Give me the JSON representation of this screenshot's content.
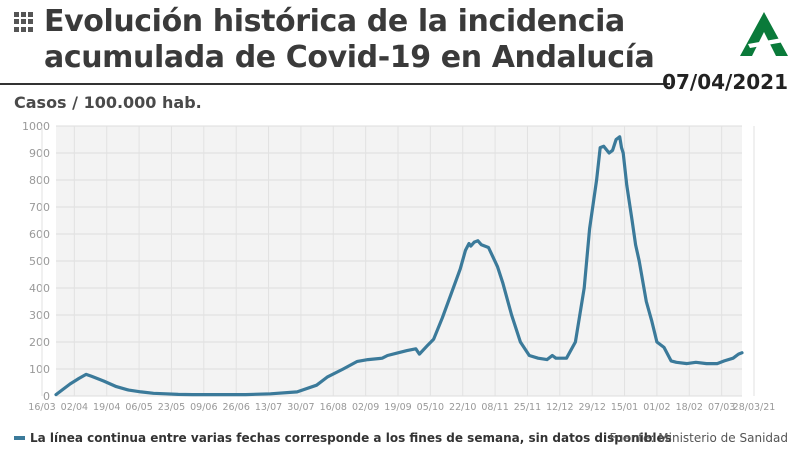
{
  "header": {
    "title_line1": "Evolución histórica de la incidencia",
    "title_line2": "acumulada de Covid-19 en Andalucía",
    "date": "07/04/2021"
  },
  "footer": {
    "note": "La línea continua entre varias fechas corresponde a los fines de semana, sin datos disponibles",
    "source": "Fuente: Ministerio de Sanidad"
  },
  "colors": {
    "line": "#3b7a9a",
    "logo": "#0a7a3a"
  },
  "chart_data": {
    "type": "line",
    "ylabel": "Casos / 100.000 hab.",
    "ylim": [
      0,
      1000
    ],
    "yticks": [
      0,
      100,
      200,
      300,
      400,
      500,
      600,
      700,
      800,
      900,
      1000
    ],
    "xlim": [
      "2020-03-16",
      "2021-04-07"
    ],
    "xticks": [
      "16/03",
      "02/04",
      "19/04",
      "06/05",
      "23/05",
      "09/06",
      "26/06",
      "13/07",
      "30/07",
      "16/08",
      "02/09",
      "19/09",
      "05/10",
      "22/10",
      "08/11",
      "25/11",
      "12/12",
      "29/12",
      "15/01",
      "01/02",
      "18/02",
      "07/03",
      "28/03/21"
    ],
    "grid": true,
    "x": [
      "2020-03-16",
      "2020-03-24",
      "2020-03-29",
      "2020-04-02",
      "2020-04-05",
      "2020-04-12",
      "2020-04-19",
      "2020-04-26",
      "2020-05-03",
      "2020-05-10",
      "2020-05-17",
      "2020-05-24",
      "2020-06-01",
      "2020-06-15",
      "2020-07-01",
      "2020-07-15",
      "2020-07-30",
      "2020-08-10",
      "2020-08-16",
      "2020-08-25",
      "2020-09-02",
      "2020-09-08",
      "2020-09-16",
      "2020-09-19",
      "2020-09-25",
      "2020-09-30",
      "2020-10-05",
      "2020-10-07",
      "2020-10-12",
      "2020-10-15",
      "2020-10-20",
      "2020-10-25",
      "2020-10-30",
      "2020-11-02",
      "2020-11-04",
      "2020-11-05",
      "2020-11-07",
      "2020-11-09",
      "2020-11-11",
      "2020-11-15",
      "2020-11-20",
      "2020-11-23",
      "2020-11-28",
      "2020-12-03",
      "2020-12-08",
      "2020-12-13",
      "2020-12-18",
      "2020-12-21",
      "2020-12-23",
      "2020-12-29",
      "2021-01-03",
      "2021-01-08",
      "2021-01-11",
      "2021-01-15",
      "2021-01-17",
      "2021-01-19",
      "2021-01-22",
      "2021-01-24",
      "2021-01-26",
      "2021-01-28",
      "2021-01-29",
      "2021-01-30",
      "2021-02-01",
      "2021-02-04",
      "2021-02-06",
      "2021-02-08",
      "2021-02-12",
      "2021-02-15",
      "2021-02-18",
      "2021-02-22",
      "2021-02-26",
      "2021-03-01",
      "2021-03-07",
      "2021-03-12",
      "2021-03-18",
      "2021-03-24",
      "2021-03-28",
      "2021-04-02",
      "2021-04-05",
      "2021-04-07"
    ],
    "values": [
      5,
      45,
      65,
      80,
      73,
      55,
      35,
      22,
      15,
      10,
      8,
      6,
      5,
      5,
      5,
      8,
      15,
      40,
      70,
      100,
      128,
      135,
      140,
      150,
      160,
      168,
      175,
      155,
      190,
      210,
      290,
      380,
      470,
      540,
      565,
      555,
      570,
      575,
      560,
      550,
      480,
      420,
      300,
      200,
      150,
      140,
      135,
      150,
      140,
      140,
      200,
      400,
      620,
      800,
      920,
      925,
      900,
      910,
      950,
      960,
      920,
      900,
      780,
      650,
      560,
      500,
      350,
      280,
      200,
      180,
      130,
      125,
      120,
      125,
      120,
      120,
      130,
      140,
      155,
      160
    ]
  }
}
